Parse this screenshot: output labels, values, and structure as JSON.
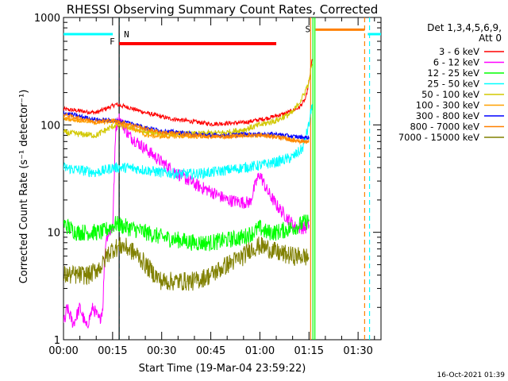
{
  "chart_data": {
    "type": "line",
    "title": "RHESSI Observing Summary Count Rates, Corrected",
    "xlabel": "Start Time (19-Mar-04 23:59:22)",
    "ylabel": "Corrected Count Rate (s⁻¹ detector⁻¹)",
    "ylog": true,
    "ylim": [
      1,
      1000
    ],
    "xlim_min": [
      0,
      97
    ],
    "x_ticks": [
      "00:00",
      "00:15",
      "00:30",
      "00:45",
      "01:00",
      "01:15",
      "01:30"
    ],
    "x_tick_min": [
      0,
      15,
      30,
      45,
      60,
      75,
      90
    ],
    "y_ticks": [
      "1",
      "10",
      "100",
      "1000"
    ],
    "y_tick_vals": [
      1,
      10,
      100,
      1000
    ],
    "legend_header": [
      "Det 1,3,4,5,6,9,",
      "Att 0"
    ],
    "legend_placement": "right",
    "footer_date": "16-Oct-2021 01:39",
    "series": [
      {
        "name": "3 - 6 keV",
        "color": "#ff0000",
        "noise": 0.02,
        "pts": [
          [
            0,
            140
          ],
          [
            10,
            130
          ],
          [
            16,
            155
          ],
          [
            20,
            145
          ],
          [
            25,
            130
          ],
          [
            32,
            115
          ],
          [
            45,
            102
          ],
          [
            55,
            105
          ],
          [
            62,
            115
          ],
          [
            68,
            128
          ],
          [
            72,
            145
          ],
          [
            74,
            175
          ],
          [
            75,
            250
          ],
          [
            75.5,
            320
          ],
          [
            76,
            420
          ]
        ]
      },
      {
        "name": "6 - 12 keV",
        "color": "#ff00ff",
        "noise": 0.06,
        "pts": [
          [
            0,
            1.5
          ],
          [
            0.5,
            1.5
          ],
          [
            1,
            2
          ],
          [
            3,
            1.4
          ],
          [
            5,
            2
          ],
          [
            7,
            1.3
          ],
          [
            9,
            2
          ],
          [
            11,
            1.5
          ],
          [
            12,
            2
          ],
          [
            12.5,
            5
          ],
          [
            13,
            9
          ],
          [
            14,
            10
          ],
          [
            15,
            11
          ],
          [
            16,
            95
          ],
          [
            17,
            115
          ],
          [
            20,
            80
          ],
          [
            25,
            60
          ],
          [
            30,
            45
          ],
          [
            35,
            35
          ],
          [
            40,
            28
          ],
          [
            45,
            24
          ],
          [
            50,
            20
          ],
          [
            55,
            19
          ],
          [
            57,
            19
          ],
          [
            58,
            24
          ],
          [
            59,
            30
          ],
          [
            60,
            35
          ],
          [
            62,
            25
          ],
          [
            65,
            18
          ],
          [
            68,
            14
          ],
          [
            71,
            11
          ],
          [
            74,
            11
          ],
          [
            75,
            12
          ]
        ]
      },
      {
        "name": "12 - 25 keV",
        "color": "#00ff00",
        "noise": 0.08,
        "pts": [
          [
            0,
            12
          ],
          [
            4,
            10
          ],
          [
            8,
            10
          ],
          [
            12,
            10
          ],
          [
            14,
            11
          ],
          [
            16,
            12
          ],
          [
            20,
            11
          ],
          [
            25,
            10
          ],
          [
            30,
            9
          ],
          [
            35,
            8.5
          ],
          [
            40,
            8
          ],
          [
            45,
            8
          ],
          [
            50,
            8.5
          ],
          [
            55,
            9
          ],
          [
            58,
            10
          ],
          [
            60,
            11
          ],
          [
            62,
            10
          ],
          [
            65,
            10
          ],
          [
            70,
            11
          ],
          [
            73,
            12
          ],
          [
            75,
            13
          ]
        ]
      },
      {
        "name": "25 - 50 keV",
        "color": "#00ffff",
        "noise": 0.05,
        "pts": [
          [
            0,
            40
          ],
          [
            5,
            38
          ],
          [
            10,
            36
          ],
          [
            13,
            38
          ],
          [
            15,
            40
          ],
          [
            20,
            40
          ],
          [
            25,
            38
          ],
          [
            30,
            36
          ],
          [
            35,
            35
          ],
          [
            40,
            35
          ],
          [
            45,
            36
          ],
          [
            50,
            38
          ],
          [
            55,
            40
          ],
          [
            60,
            42
          ],
          [
            65,
            45
          ],
          [
            70,
            50
          ],
          [
            73,
            60
          ],
          [
            75,
            100
          ],
          [
            76,
            160
          ]
        ]
      },
      {
        "name": "50 - 100 keV",
        "color": "#d2c800",
        "noise": 0.03,
        "pts": [
          [
            0,
            85
          ],
          [
            5,
            82
          ],
          [
            10,
            80
          ],
          [
            13,
            90
          ],
          [
            16,
            100
          ],
          [
            20,
            95
          ],
          [
            25,
            85
          ],
          [
            30,
            82
          ],
          [
            35,
            82
          ],
          [
            40,
            82
          ],
          [
            45,
            83
          ],
          [
            50,
            85
          ],
          [
            55,
            90
          ],
          [
            60,
            100
          ],
          [
            65,
            110
          ],
          [
            70,
            130
          ],
          [
            73,
            180
          ],
          [
            75,
            250
          ],
          [
            76,
            380
          ]
        ]
      },
      {
        "name": "100 - 300 keV",
        "color": "#ffa000",
        "noise": 0.02,
        "pts": [
          [
            0,
            115
          ],
          [
            5,
            110
          ],
          [
            10,
            105
          ],
          [
            15,
            108
          ],
          [
            18,
            102
          ],
          [
            22,
            90
          ],
          [
            25,
            80
          ],
          [
            30,
            78
          ],
          [
            35,
            78
          ],
          [
            40,
            78
          ],
          [
            45,
            78
          ],
          [
            50,
            78
          ],
          [
            55,
            80
          ],
          [
            60,
            80
          ],
          [
            65,
            78
          ],
          [
            70,
            72
          ],
          [
            75,
            68
          ]
        ]
      },
      {
        "name": "300 - 800 keV",
        "color": "#0000ff",
        "noise": 0.02,
        "pts": [
          [
            0,
            130
          ],
          [
            5,
            120
          ],
          [
            10,
            112
          ],
          [
            15,
            110
          ],
          [
            20,
            105
          ],
          [
            25,
            95
          ],
          [
            30,
            88
          ],
          [
            35,
            85
          ],
          [
            40,
            82
          ],
          [
            45,
            80
          ],
          [
            50,
            80
          ],
          [
            55,
            82
          ],
          [
            60,
            82
          ],
          [
            65,
            82
          ],
          [
            70,
            78
          ],
          [
            75,
            76
          ]
        ]
      },
      {
        "name": "800 - 7000 keV",
        "color": "#ff8000",
        "noise": 0.02,
        "pts": [
          [
            0,
            125
          ],
          [
            5,
            115
          ],
          [
            10,
            108
          ],
          [
            15,
            110
          ],
          [
            20,
            102
          ],
          [
            25,
            92
          ],
          [
            30,
            85
          ],
          [
            35,
            83
          ],
          [
            40,
            80
          ],
          [
            45,
            78
          ],
          [
            50,
            78
          ],
          [
            55,
            80
          ],
          [
            60,
            80
          ],
          [
            65,
            78
          ],
          [
            70,
            72
          ],
          [
            75,
            70
          ]
        ]
      },
      {
        "name": "7000 - 15000 keV",
        "color": "#808000",
        "noise": 0.09,
        "pts": [
          [
            0,
            4
          ],
          [
            3,
            4
          ],
          [
            5,
            4
          ],
          [
            8,
            4
          ],
          [
            10,
            4.5
          ],
          [
            12,
            5
          ],
          [
            13,
            6
          ],
          [
            15,
            7
          ],
          [
            18,
            7.5
          ],
          [
            20,
            7
          ],
          [
            23,
            6
          ],
          [
            25,
            5
          ],
          [
            28,
            4
          ],
          [
            30,
            3.5
          ],
          [
            35,
            3.5
          ],
          [
            40,
            3.5
          ],
          [
            45,
            4
          ],
          [
            50,
            5
          ],
          [
            55,
            6
          ],
          [
            57,
            7
          ],
          [
            60,
            7.5
          ],
          [
            63,
            7
          ],
          [
            65,
            6.5
          ],
          [
            70,
            6
          ],
          [
            73,
            6
          ],
          [
            75,
            5.8
          ]
        ]
      }
    ],
    "annotations": {
      "N": {
        "label": "N",
        "color": "#00ffff",
        "x_min": 17,
        "y": 700,
        "x_end": 98,
        "start_min": 0
      },
      "F": {
        "label": "F",
        "color": "#ff0000",
        "x_min_start": 17,
        "x_min_end": 65,
        "y": 570
      },
      "S": {
        "label": "S",
        "color": "#ff8000",
        "x_min_start": 77,
        "x_min_end": 92,
        "y": 770
      }
    },
    "vlines": [
      {
        "x_min": 17,
        "color": "#00ffff",
        "style": "dash"
      },
      {
        "x_min": 17,
        "color": "#000000",
        "style": "solid"
      },
      {
        "x_min": 75.5,
        "color": "#ff8000",
        "style": "solid"
      },
      {
        "x_min": 76.2,
        "color": "#00ff00",
        "style": "solid"
      },
      {
        "x_min": 76.8,
        "color": "#00ff00",
        "style": "solid"
      },
      {
        "x_min": 92,
        "color": "#ff8000",
        "style": "dash"
      },
      {
        "x_min": 93.5,
        "color": "#00ffff",
        "style": "dash"
      }
    ]
  }
}
